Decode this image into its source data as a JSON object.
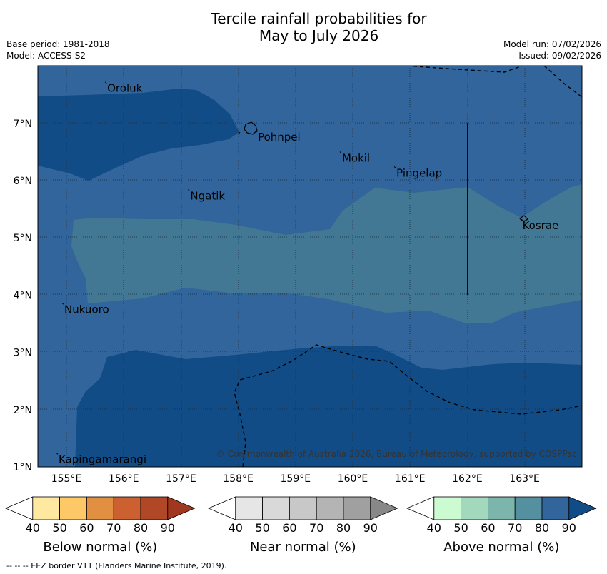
{
  "header": {
    "title_line1": "Tercile rainfall probabilities for",
    "title_line2": "May to July 2026",
    "base_period": "Base period: 1981-2018",
    "model": "Model: ACCESS-S2",
    "model_run": "Model run: 07/02/2026",
    "issued": "Issued: 09/02/2026"
  },
  "map": {
    "lat_ticks": [
      "1°N",
      "2°N",
      "3°N",
      "4°N",
      "5°N",
      "6°N",
      "7°N"
    ],
    "lon_ticks": [
      "155°E",
      "156°E",
      "157°E",
      "158°E",
      "159°E",
      "160°E",
      "161°E",
      "162°E",
      "163°E"
    ],
    "places": [
      {
        "name": "Oroluk",
        "lat": 7.6,
        "lon": 155.7
      },
      {
        "name": "Pohnpei",
        "lat": 6.75,
        "lon": 158.33
      },
      {
        "name": "Mokil",
        "lat": 6.38,
        "lon": 159.8
      },
      {
        "name": "Pingelap",
        "lat": 6.12,
        "lon": 160.75
      },
      {
        "name": "Ngatik",
        "lat": 5.72,
        "lon": 157.15
      },
      {
        "name": "Kosrae",
        "lat": 5.2,
        "lon": 162.95
      },
      {
        "name": "Nukuoro",
        "lat": 3.74,
        "lon": 154.95
      },
      {
        "name": "Kapingamarangi",
        "lat": 1.12,
        "lon": 154.85
      }
    ],
    "copyright": "© Commonwealth of Australia 2026, Bureau of Meteorology, supported by COSPPac",
    "colors": {
      "above_80": "#124c87",
      "above_70": "#31659c",
      "above_60": "#427893"
    }
  },
  "legend": {
    "below": {
      "title": "Below normal (%)",
      "ticks": [
        "40",
        "50",
        "60",
        "70",
        "80",
        "90"
      ],
      "colors": [
        "#ffffff",
        "#ffe8a0",
        "#fdc866",
        "#e09040",
        "#cc6030",
        "#b04828",
        "#a03820"
      ]
    },
    "near": {
      "title": "Near normal (%)",
      "ticks": [
        "40",
        "50",
        "60",
        "70",
        "80",
        "90"
      ],
      "colors": [
        "#ffffff",
        "#e6e6e6",
        "#d9d9d9",
        "#c8c8c8",
        "#b4b4b4",
        "#a0a0a0",
        "#888888"
      ]
    },
    "above": {
      "title": "Above normal (%)",
      "ticks": [
        "40",
        "50",
        "60",
        "70",
        "80",
        "90"
      ],
      "colors": [
        "#ffffff",
        "#ccfbd2",
        "#a2d9bc",
        "#7cb5ac",
        "#5590a0",
        "#31659c",
        "#124c87"
      ]
    }
  },
  "footnote": "--  --  -- EEZ border V11 (Flanders Marine Institute, 2019)."
}
